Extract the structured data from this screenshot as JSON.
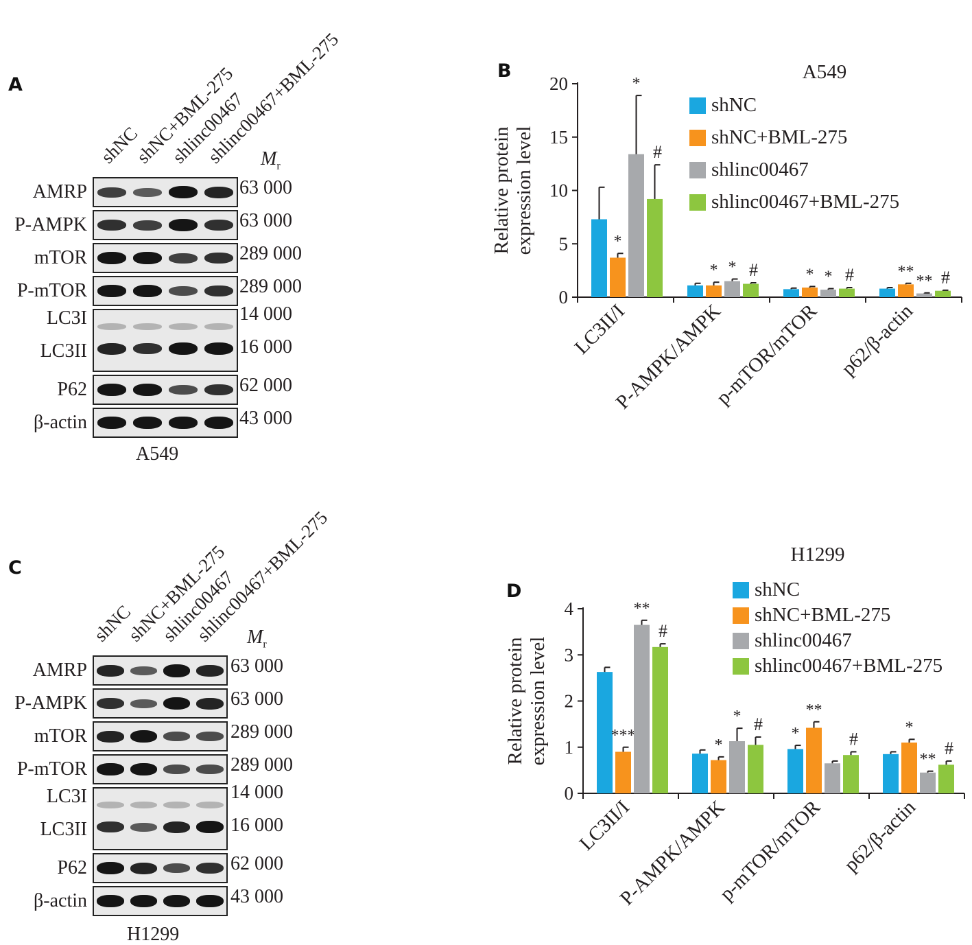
{
  "panels": {
    "A": {
      "letter": "A",
      "cell_line": "A549"
    },
    "B": {
      "letter": "B"
    },
    "C": {
      "letter": "C",
      "cell_line": "H1299"
    },
    "D": {
      "letter": "D"
    }
  },
  "blot": {
    "lanes": [
      "shNC",
      "shNC+BML-275",
      "shlinc00467",
      "shlinc00467+BML-275"
    ],
    "mr_header": "M",
    "mr_sub": "r",
    "rows": [
      {
        "label": "AMRP",
        "mr": "63 000"
      },
      {
        "label": "P-AMPK",
        "mr": "63 000"
      },
      {
        "label": "mTOR",
        "mr": "289 000"
      },
      {
        "label": "P-mTOR",
        "mr": "289 000"
      },
      {
        "label": "LC3I",
        "mr": "14 000"
      },
      {
        "label": "LC3II",
        "mr": "16 000"
      },
      {
        "label": "P62",
        "mr": "62 000"
      },
      {
        "label": "β-actin",
        "mr": "43 000"
      }
    ]
  },
  "colors": {
    "shNC": "#1aa7e0",
    "shNC+BML-275": "#f7931d",
    "shlinc00467": "#a7a9ac",
    "shlinc00467+BML-275": "#8dc63f"
  },
  "chart_data": [
    {
      "type": "bar",
      "title": "A549",
      "ylabel": [
        "Relative protein",
        "expression level"
      ],
      "xlabel": "",
      "categories": [
        "LC3II/I",
        "P-AMPK/AMPK",
        "p-mTOR/mTOR",
        "p62/β-actin"
      ],
      "ylim": [
        0,
        20
      ],
      "yticks": [
        0,
        5,
        10,
        15,
        20
      ],
      "legend_position": "top-right",
      "series": [
        {
          "name": "shNC",
          "values": [
            7.3,
            1.1,
            0.75,
            0.8
          ],
          "errors": [
            3.0,
            0.2,
            0.1,
            0.1
          ],
          "marks": [
            "",
            "",
            "",
            ""
          ]
        },
        {
          "name": "shNC+BML-275",
          "values": [
            3.7,
            1.1,
            0.9,
            1.2
          ],
          "errors": [
            0.4,
            0.3,
            0.1,
            0.1
          ],
          "marks": [
            "*",
            "*",
            "*",
            "**"
          ]
        },
        {
          "name": "shlinc00467",
          "values": [
            13.4,
            1.5,
            0.7,
            0.35
          ],
          "errors": [
            5.5,
            0.2,
            0.1,
            0.05
          ],
          "marks": [
            "*",
            "*",
            "*",
            "**"
          ]
        },
        {
          "name": "shlinc00467+BML-275",
          "values": [
            9.2,
            1.25,
            0.8,
            0.6
          ],
          "errors": [
            3.2,
            0.1,
            0.1,
            0.05
          ],
          "marks": [
            "#",
            "#",
            "#",
            "#"
          ]
        }
      ]
    },
    {
      "type": "bar",
      "title": "H1299",
      "ylabel": [
        "Relative protein",
        "expression level"
      ],
      "xlabel": "",
      "categories": [
        "LC3II/I",
        "P-AMPK/AMPK",
        "p-mTOR/mTOR",
        "p62/β-actin"
      ],
      "ylim": [
        0,
        4
      ],
      "yticks": [
        0,
        1,
        2,
        3,
        4
      ],
      "legend_position": "top-right",
      "series": [
        {
          "name": "shNC",
          "values": [
            2.63,
            0.86,
            0.96,
            0.85
          ],
          "errors": [
            0.1,
            0.08,
            0.08,
            0.05
          ],
          "marks": [
            "",
            "",
            "*",
            ""
          ]
        },
        {
          "name": "shNC+BML-275",
          "values": [
            0.9,
            0.72,
            1.42,
            1.1
          ],
          "errors": [
            0.1,
            0.07,
            0.13,
            0.07
          ],
          "marks": [
            "***",
            "*",
            "**",
            "*"
          ]
        },
        {
          "name": "shlinc00467",
          "values": [
            3.65,
            1.13,
            0.65,
            0.45
          ],
          "errors": [
            0.1,
            0.28,
            0.05,
            0.03
          ],
          "marks": [
            "**",
            "*",
            "",
            "**"
          ]
        },
        {
          "name": "shlinc00467+BML-275",
          "values": [
            3.17,
            1.05,
            0.83,
            0.62
          ],
          "errors": [
            0.07,
            0.17,
            0.07,
            0.08
          ],
          "marks": [
            "#",
            "#",
            "#",
            "#"
          ]
        }
      ]
    }
  ]
}
